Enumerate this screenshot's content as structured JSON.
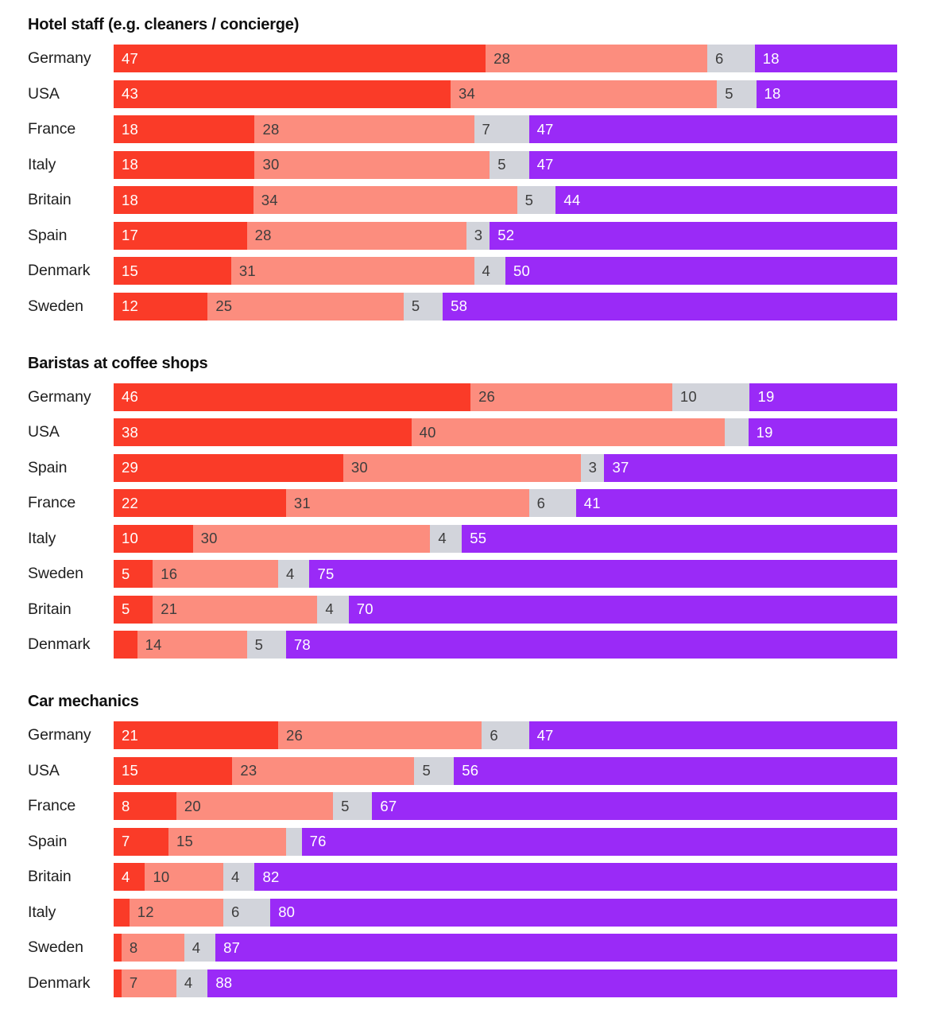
{
  "page": {
    "background": "#ffffff"
  },
  "chart_data": {
    "type": "bar",
    "variant": "horizontal-stacked-100",
    "orientation": "horizontal",
    "grid": false,
    "legend": "none",
    "xlim": [
      0,
      100
    ],
    "segment_colors": [
      "#fa3b28",
      "#fc8d7e",
      "#d2d4db",
      "#9a2af7"
    ],
    "segment_label_colors": [
      "#ffffff",
      "#3d3d3d",
      "#3d3d3d",
      "#ffffff"
    ],
    "charts": [
      {
        "title": "Hotel staff (e.g. cleaners / concierge)",
        "rows": [
          {
            "country": "Germany",
            "values": [
              47,
              28,
              6,
              18
            ],
            "labels": [
              "47",
              "28",
              "6",
              "18"
            ]
          },
          {
            "country": "USA",
            "values": [
              43,
              34,
              5,
              18
            ],
            "labels": [
              "43",
              "34",
              "5",
              "18"
            ]
          },
          {
            "country": "France",
            "values": [
              18,
              28,
              7,
              47
            ],
            "labels": [
              "18",
              "28",
              "7",
              "47"
            ]
          },
          {
            "country": "Italy",
            "values": [
              18,
              30,
              5,
              47
            ],
            "labels": [
              "18",
              "30",
              "5",
              "47"
            ]
          },
          {
            "country": "Britain",
            "values": [
              18,
              34,
              5,
              44
            ],
            "labels": [
              "18",
              "34",
              "5",
              "44"
            ]
          },
          {
            "country": "Spain",
            "values": [
              17,
              28,
              3,
              52
            ],
            "labels": [
              "17",
              "28",
              "3",
              "52"
            ]
          },
          {
            "country": "Denmark",
            "values": [
              15,
              31,
              4,
              50
            ],
            "labels": [
              "15",
              "31",
              "4",
              "50"
            ]
          },
          {
            "country": "Sweden",
            "values": [
              12,
              25,
              5,
              58
            ],
            "labels": [
              "12",
              "25",
              "5",
              "58"
            ]
          }
        ]
      },
      {
        "title": "Baristas at coffee shops",
        "rows": [
          {
            "country": "Germany",
            "values": [
              46,
              26,
              10,
              19
            ],
            "labels": [
              "46",
              "26",
              "10",
              "19"
            ]
          },
          {
            "country": "USA",
            "values": [
              38,
              40,
              3,
              19
            ],
            "labels": [
              "38",
              "40",
              "",
              "19"
            ]
          },
          {
            "country": "Spain",
            "values": [
              29,
              30,
              3,
              37
            ],
            "labels": [
              "29",
              "30",
              "3",
              "37"
            ]
          },
          {
            "country": "France",
            "values": [
              22,
              31,
              6,
              41
            ],
            "labels": [
              "22",
              "31",
              "6",
              "41"
            ]
          },
          {
            "country": "Italy",
            "values": [
              10,
              30,
              4,
              55
            ],
            "labels": [
              "10",
              "30",
              "4",
              "55"
            ]
          },
          {
            "country": "Sweden",
            "values": [
              5,
              16,
              4,
              75
            ],
            "labels": [
              "5",
              "16",
              "4",
              "75"
            ]
          },
          {
            "country": "Britain",
            "values": [
              5,
              21,
              4,
              70
            ],
            "labels": [
              "5",
              "21",
              "4",
              "70"
            ]
          },
          {
            "country": "Denmark",
            "values": [
              3,
              14,
              5,
              78
            ],
            "labels": [
              "",
              "14",
              "5",
              "78"
            ]
          }
        ]
      },
      {
        "title": "Car mechanics",
        "rows": [
          {
            "country": "Germany",
            "values": [
              21,
              26,
              6,
              47
            ],
            "labels": [
              "21",
              "26",
              "6",
              "47"
            ]
          },
          {
            "country": "USA",
            "values": [
              15,
              23,
              5,
              56
            ],
            "labels": [
              "15",
              "23",
              "5",
              "56"
            ]
          },
          {
            "country": "France",
            "values": [
              8,
              20,
              5,
              67
            ],
            "labels": [
              "8",
              "20",
              "5",
              "67"
            ]
          },
          {
            "country": "Spain",
            "values": [
              7,
              15,
              2,
              76
            ],
            "labels": [
              "7",
              "15",
              "",
              "76"
            ]
          },
          {
            "country": "Britain",
            "values": [
              4,
              10,
              4,
              82
            ],
            "labels": [
              "4",
              "10",
              "4",
              "82"
            ]
          },
          {
            "country": "Italy",
            "values": [
              2,
              12,
              6,
              80
            ],
            "labels": [
              "",
              "12",
              "6",
              "80"
            ]
          },
          {
            "country": "Sweden",
            "values": [
              1,
              8,
              4,
              87
            ],
            "labels": [
              "",
              "8",
              "4",
              "87"
            ]
          },
          {
            "country": "Denmark",
            "values": [
              1,
              7,
              4,
              88
            ],
            "labels": [
              "",
              "7",
              "4",
              "88"
            ]
          }
        ]
      }
    ]
  }
}
